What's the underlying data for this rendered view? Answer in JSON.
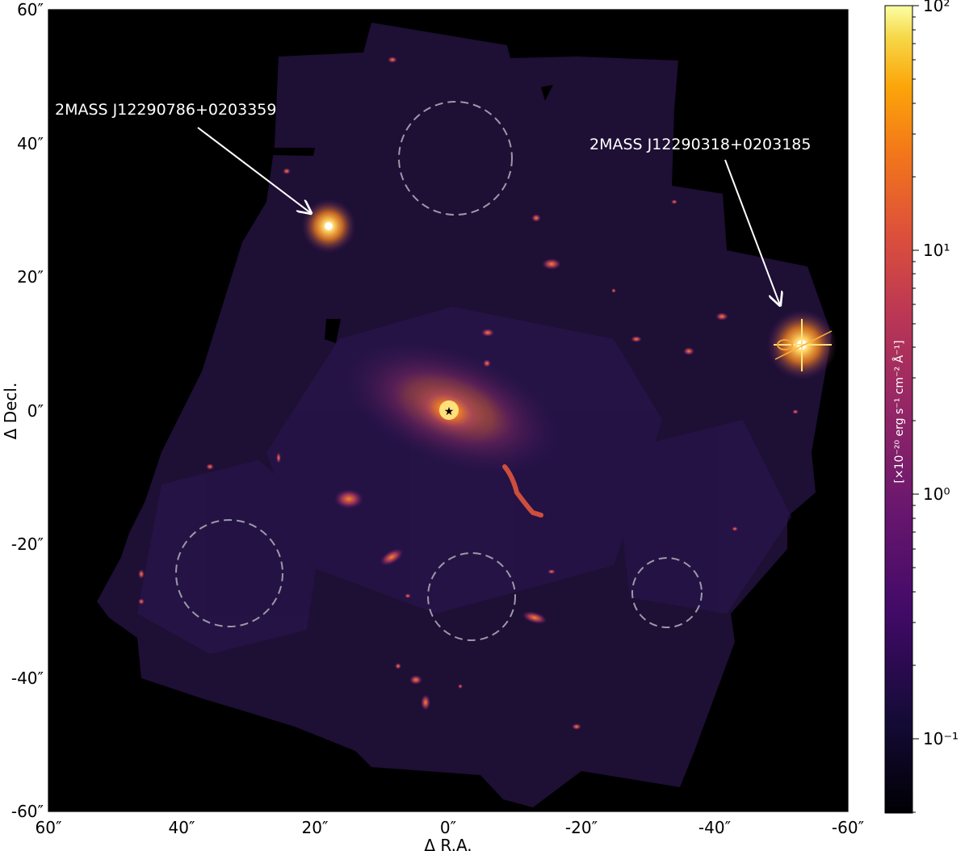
{
  "figure": {
    "xlabel": "Δ R.A.",
    "ylabel": "Δ Decl.",
    "x_ticks": [
      "60″",
      "40″",
      "20″",
      "0″",
      "-20″",
      "-40″",
      "-60″"
    ],
    "y_ticks": [
      "60″",
      "40″",
      "20″",
      "0″",
      "-20″",
      "-40″",
      "-60″"
    ],
    "x_range_arcsec": [
      60,
      -60
    ],
    "y_range_arcsec": [
      -60,
      60
    ]
  },
  "annotations": [
    {
      "label": "2MASS J12290786+0203359",
      "target_arcsec": [
        18,
        28
      ]
    },
    {
      "label": "2MASS J12290318+0203185",
      "target_arcsec": [
        -50,
        15
      ]
    }
  ],
  "colorbar": {
    "title": "[×10⁻²⁰ erg s⁻¹ cm⁻² Å⁻¹]",
    "colormap": "inferno",
    "scale": "log",
    "range": [
      0.05,
      100
    ],
    "tick_labels": [
      "10²",
      "10¹",
      "10⁰",
      "10⁻¹"
    ]
  },
  "image": {
    "description_type": "astronomical emission map",
    "background_color": "#000000",
    "mosaic_color": "#1e0f35"
  }
}
